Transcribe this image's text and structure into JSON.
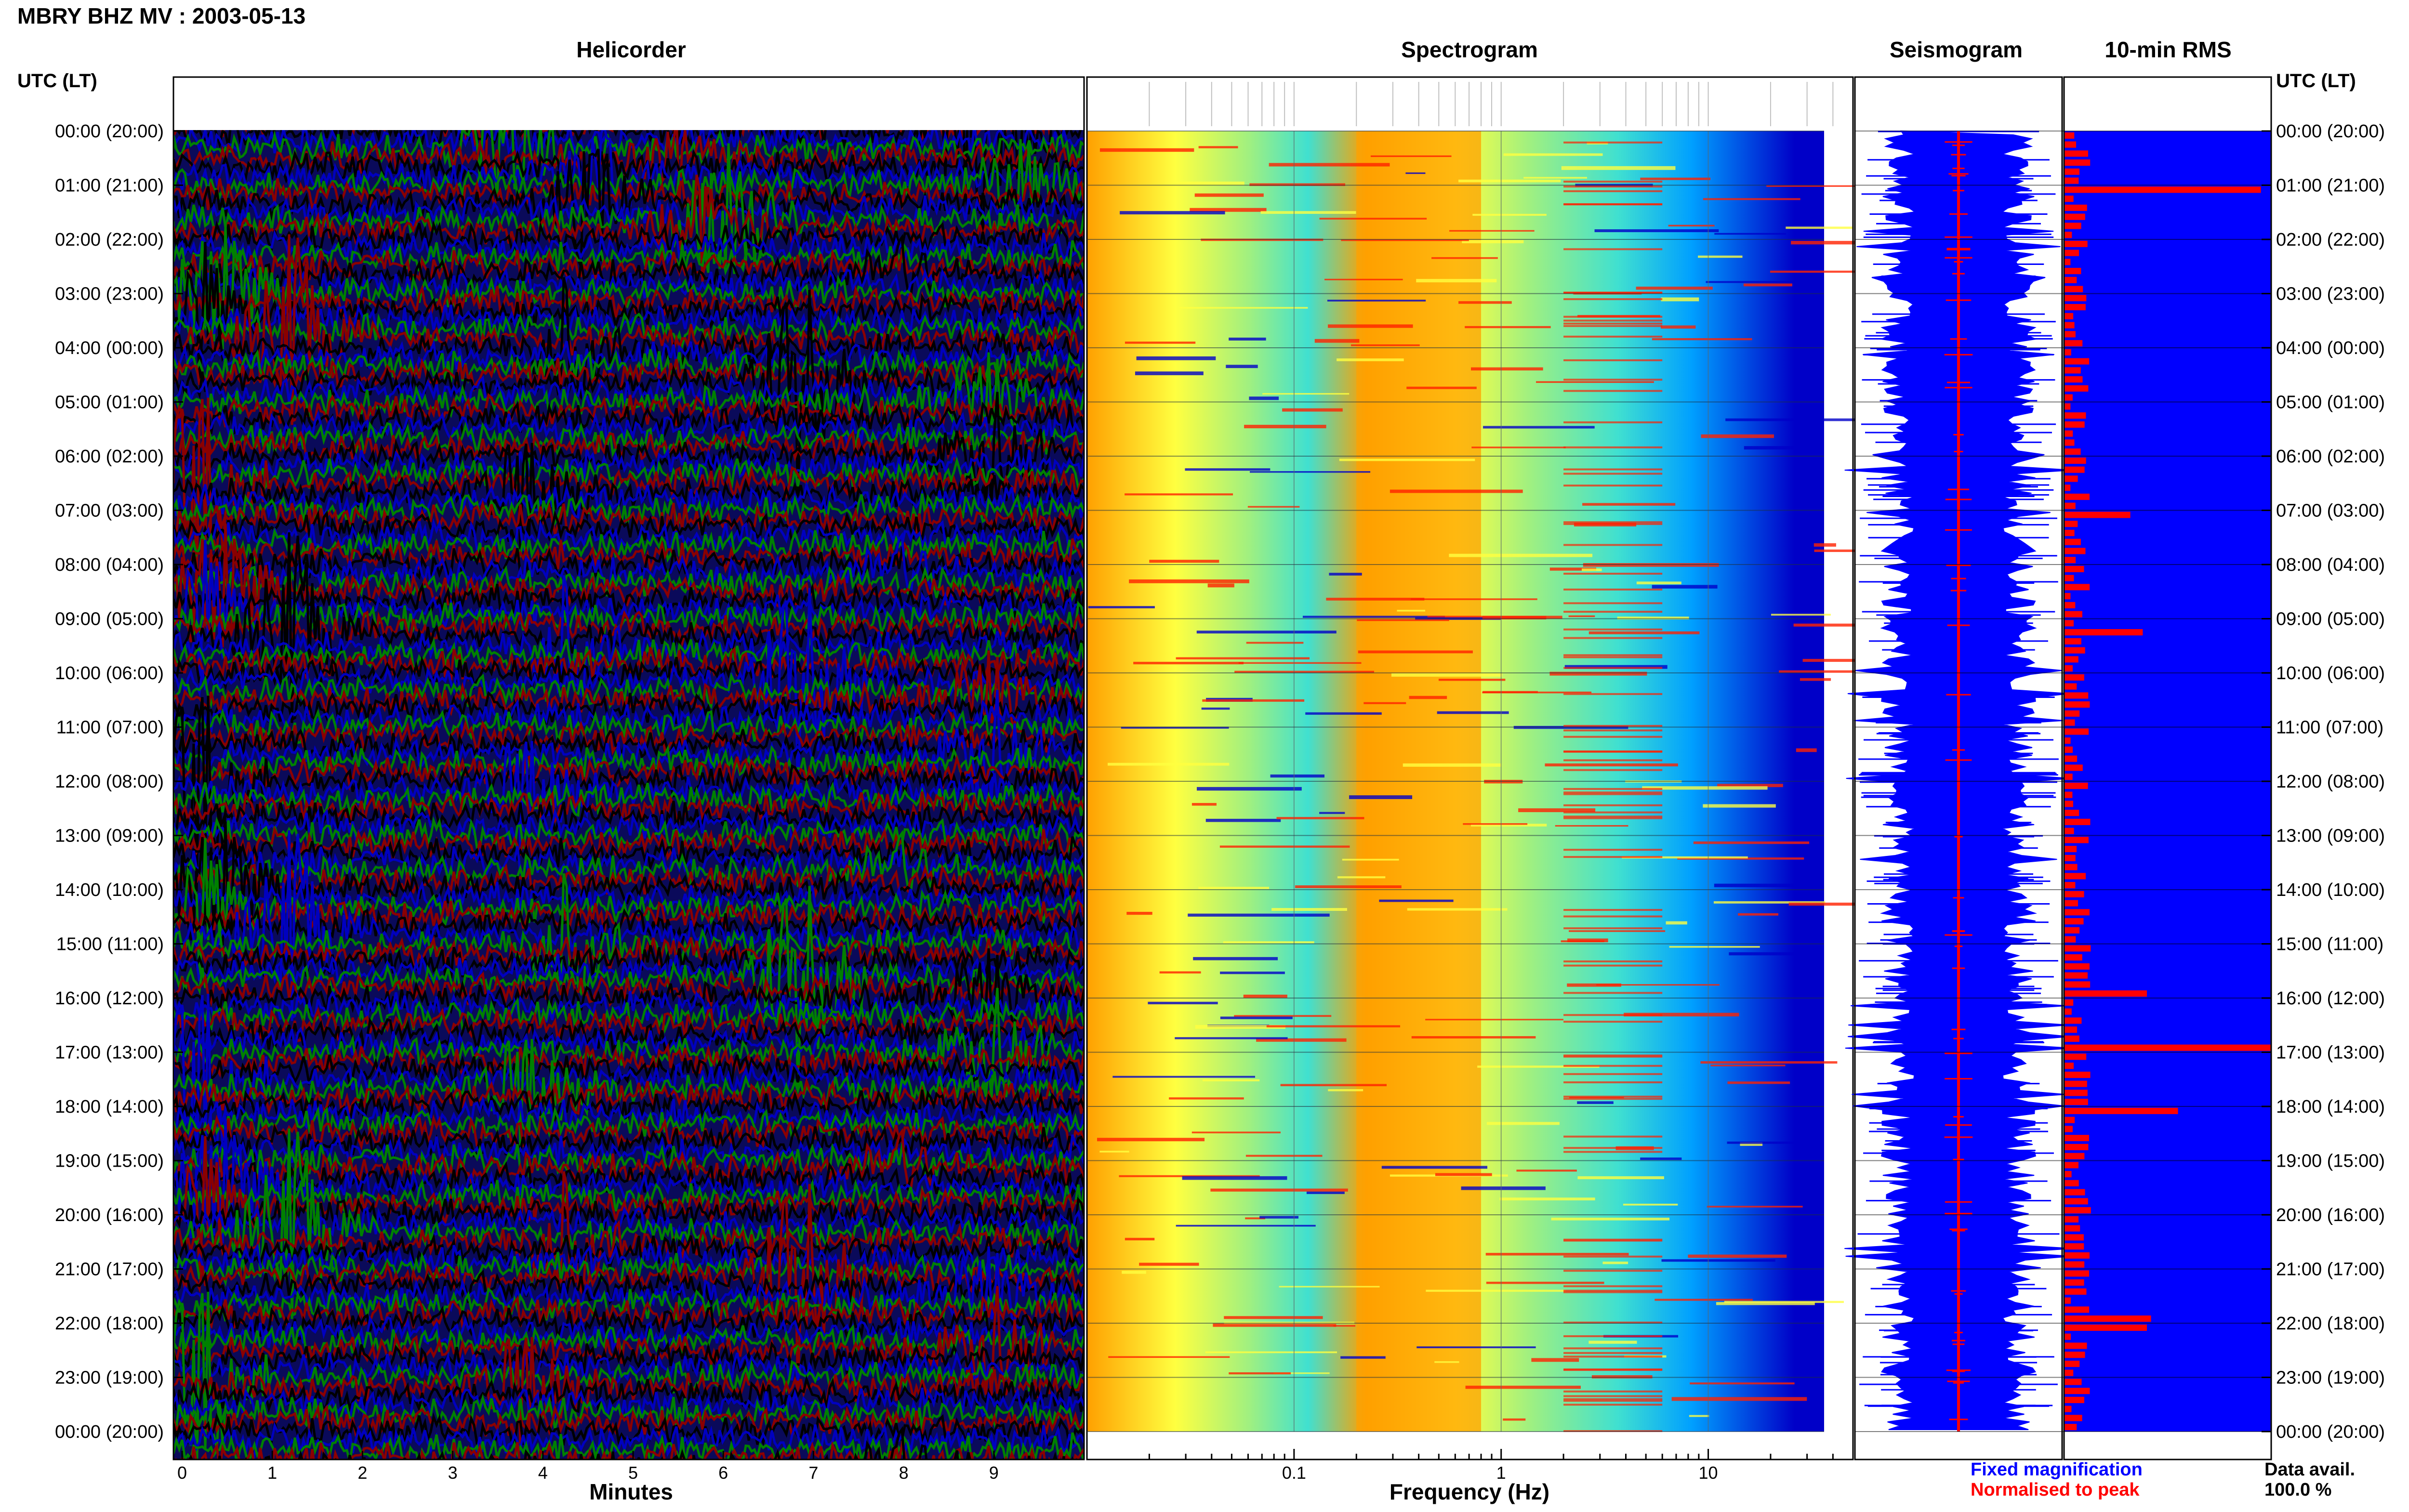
{
  "header": {
    "title": "MBRY BHZ MV : 2003-05-13"
  },
  "panels": {
    "helicorder": "Helicorder",
    "spectrogram": "Spectrogram",
    "seismogram": "Seismogram",
    "rms": "10-min RMS"
  },
  "axis_heads": {
    "left": "UTC (LT)",
    "right": "UTC (LT)"
  },
  "legend": {
    "fixed": "Fixed magnification",
    "normalised": "Normalised to peak",
    "fixed_color": "#0000ff",
    "normalised_color": "#ff0000",
    "data_avail_label": "Data avail.",
    "data_avail_value": "100.0 %"
  },
  "colors": {
    "helicorder_traces": [
      "#000000",
      "#0000c0",
      "#008000",
      "#8b0000"
    ],
    "seismogram_trace": "#0000ff",
    "seismogram_peak": "#ff0000",
    "rms_background": "#0000ff",
    "rms_bar": "#ff0000",
    "spectrogram_scale": [
      "#0000c8",
      "#00a0ff",
      "#40e0d0",
      "#a0f080",
      "#ffff40",
      "#ffa000",
      "#ff2000"
    ]
  },
  "chart_data": [
    {
      "type": "line",
      "name": "helicorder",
      "title": "Helicorder",
      "xlabel": "Minutes",
      "ylabel": "UTC (LT)",
      "xlim": [
        0,
        10
      ],
      "x_ticks": [
        "0",
        "1",
        "2",
        "3",
        "4",
        "5",
        "6",
        "7",
        "8",
        "9"
      ],
      "rows_per_hour": 6,
      "hours": 24
    },
    {
      "type": "heatmap",
      "name": "spectrogram",
      "title": "Spectrogram",
      "xlabel": "Frequency (Hz)",
      "x_scale": "log",
      "xlim": [
        0.01,
        50
      ],
      "x_ticks": [
        "0.1",
        "1",
        "10"
      ],
      "dominant_band_hz": [
        0.2,
        0.8
      ],
      "secondary_band_hz": [
        2,
        6
      ]
    },
    {
      "type": "line",
      "name": "seismogram",
      "title": "Seismogram"
    },
    {
      "type": "bar",
      "name": "rms",
      "title": "10-min RMS",
      "bins": 144,
      "peak_bins": [
        {
          "time": "01:00",
          "value": 0.95
        },
        {
          "time": "16:50",
          "value": 1.0
        },
        {
          "time": "18:00",
          "value": 0.55
        },
        {
          "time": "21:50",
          "value": 0.42
        },
        {
          "time": "22:00",
          "value": 0.4
        },
        {
          "time": "09:10",
          "value": 0.38
        },
        {
          "time": "07:00",
          "value": 0.32
        },
        {
          "time": "15:50",
          "value": 0.4
        }
      ]
    }
  ],
  "time_labels": [
    "00:00 (20:00)",
    "01:00 (21:00)",
    "02:00 (22:00)",
    "03:00 (23:00)",
    "04:00 (00:00)",
    "05:00 (01:00)",
    "06:00 (02:00)",
    "07:00 (03:00)",
    "08:00 (04:00)",
    "09:00 (05:00)",
    "10:00 (06:00)",
    "11:00 (07:00)",
    "12:00 (08:00)",
    "13:00 (09:00)",
    "14:00 (10:00)",
    "15:00 (11:00)",
    "16:00 (12:00)",
    "17:00 (13:00)",
    "18:00 (14:00)",
    "19:00 (15:00)",
    "20:00 (16:00)",
    "21:00 (17:00)",
    "22:00 (18:00)",
    "23:00 (19:00)",
    "00:00 (20:00)"
  ]
}
